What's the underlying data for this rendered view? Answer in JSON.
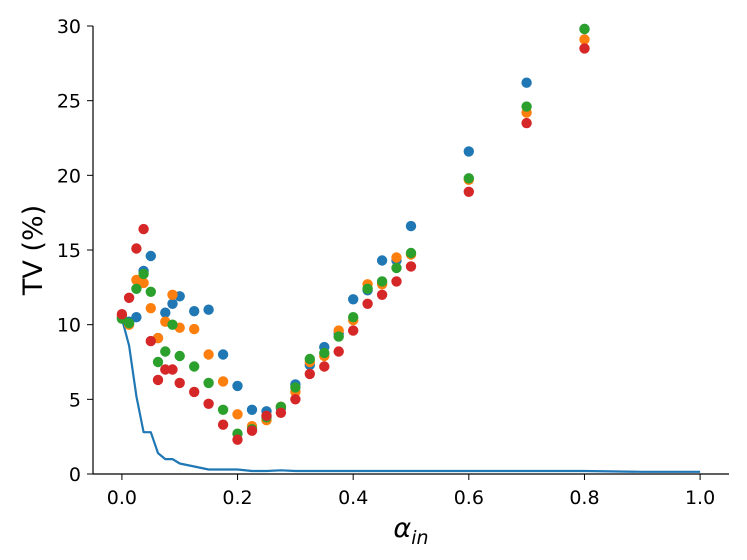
{
  "chart_data": {
    "type": "scatter",
    "xlabel": "α",
    "xlabel_sub": "in",
    "ylabel": "TV (%)",
    "xlim": [
      -0.05,
      1.05
    ],
    "ylim": [
      0,
      30
    ],
    "xticks": [
      0.0,
      0.2,
      0.4,
      0.6,
      0.8,
      1.0
    ],
    "xtick_labels": [
      "0.0",
      "0.2",
      "0.4",
      "0.6",
      "0.8",
      "1.0"
    ],
    "yticks": [
      0,
      5,
      10,
      15,
      20,
      25,
      30
    ],
    "ytick_labels": [
      "0",
      "5",
      "10",
      "15",
      "20",
      "25",
      "30"
    ],
    "grid": false,
    "series": [
      {
        "color": "#1f77b4",
        "x": [
          0.0,
          0.0125,
          0.025,
          0.0375,
          0.05,
          0.0625,
          0.075,
          0.0875,
          0.1,
          0.125,
          0.15,
          0.175,
          0.2,
          0.225,
          0.25,
          0.275,
          0.3,
          0.325,
          0.35,
          0.375,
          0.4,
          0.425,
          0.45,
          0.475,
          0.5,
          0.6,
          0.7,
          0.8
        ],
        "y": [
          10.5,
          10.2,
          10.5,
          13.6,
          14.6,
          9.1,
          10.8,
          11.4,
          11.9,
          10.9,
          11.0,
          8.0,
          5.9,
          4.3,
          4.2,
          4.4,
          6.0,
          7.3,
          8.5,
          9.4,
          11.7,
          12.3,
          14.3,
          14.3,
          16.6,
          21.6,
          26.2,
          29.8
        ]
      },
      {
        "color": "#ff7f0e",
        "x": [
          0.0,
          0.0125,
          0.025,
          0.0375,
          0.05,
          0.0625,
          0.075,
          0.0875,
          0.1,
          0.125,
          0.15,
          0.175,
          0.2,
          0.225,
          0.25,
          0.275,
          0.3,
          0.325,
          0.35,
          0.375,
          0.4,
          0.425,
          0.45,
          0.475,
          0.5,
          0.6,
          0.7,
          0.8
        ],
        "y": [
          10.6,
          10.0,
          13.0,
          12.8,
          11.1,
          9.1,
          10.2,
          12.0,
          9.8,
          9.7,
          8.0,
          6.2,
          4.0,
          3.2,
          3.6,
          4.5,
          5.5,
          7.5,
          7.9,
          9.6,
          10.3,
          12.7,
          12.7,
          14.5,
          14.7,
          19.7,
          24.2,
          29.1
        ]
      },
      {
        "color": "#2ca02c",
        "x": [
          0.0,
          0.0125,
          0.025,
          0.0375,
          0.05,
          0.0625,
          0.075,
          0.0875,
          0.1,
          0.125,
          0.15,
          0.175,
          0.2,
          0.225,
          0.25,
          0.275,
          0.3,
          0.325,
          0.35,
          0.375,
          0.4,
          0.425,
          0.45,
          0.475,
          0.5,
          0.6,
          0.7,
          0.8
        ],
        "y": [
          10.4,
          10.1,
          12.4,
          13.4,
          12.2,
          7.5,
          8.2,
          10.0,
          7.9,
          7.2,
          6.1,
          4.3,
          2.7,
          3.0,
          3.8,
          4.5,
          5.8,
          7.7,
          8.1,
          9.2,
          10.5,
          12.4,
          12.9,
          13.8,
          14.8,
          19.8,
          24.6,
          29.8
        ]
      },
      {
        "color": "#d62728",
        "x": [
          0.0,
          0.0125,
          0.025,
          0.0375,
          0.05,
          0.0625,
          0.075,
          0.0875,
          0.1,
          0.125,
          0.15,
          0.175,
          0.2,
          0.225,
          0.25,
          0.275,
          0.3,
          0.325,
          0.35,
          0.375,
          0.4,
          0.425,
          0.45,
          0.475,
          0.5,
          0.6,
          0.7,
          0.8
        ],
        "y": [
          10.7,
          11.8,
          15.1,
          16.4,
          8.9,
          6.3,
          7.0,
          7.0,
          6.1,
          5.5,
          4.7,
          3.3,
          2.3,
          2.9,
          3.9,
          4.1,
          5.0,
          6.7,
          7.2,
          8.2,
          9.6,
          11.4,
          12.0,
          12.9,
          13.9,
          18.9,
          23.5,
          28.5
        ]
      }
    ],
    "line": {
      "color": "#1f77b4",
      "x": [
        0.0,
        0.0125,
        0.025,
        0.0375,
        0.05,
        0.0625,
        0.075,
        0.0875,
        0.1,
        0.125,
        0.15,
        0.175,
        0.2,
        0.225,
        0.25,
        0.275,
        0.3,
        0.35,
        0.4,
        0.45,
        0.5,
        0.6,
        0.7,
        0.8,
        0.9,
        1.0
      ],
      "y": [
        10.4,
        8.6,
        5.2,
        2.8,
        2.8,
        1.4,
        1.0,
        1.0,
        0.7,
        0.5,
        0.3,
        0.3,
        0.3,
        0.2,
        0.2,
        0.25,
        0.2,
        0.2,
        0.2,
        0.2,
        0.2,
        0.2,
        0.2,
        0.2,
        0.15,
        0.15
      ]
    }
  }
}
